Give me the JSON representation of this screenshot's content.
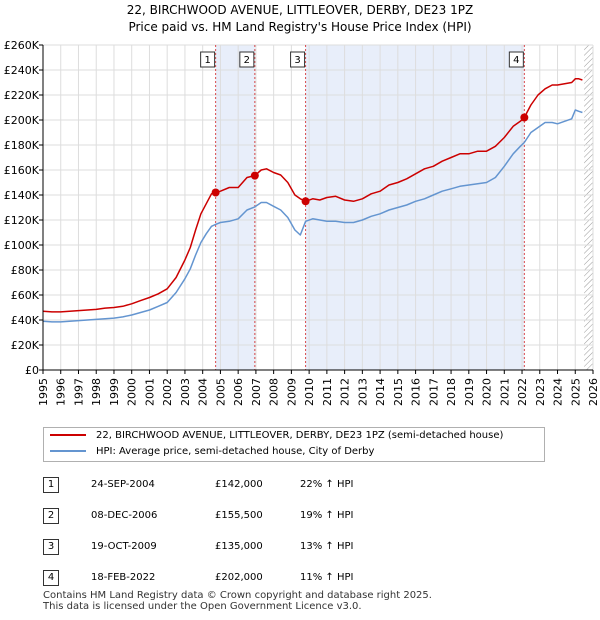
{
  "title_line1": "22, BIRCHWOOD AVENUE, LITTLEOVER, DERBY, DE23 1PZ",
  "title_line2": "Price paid vs. HM Land Registry's House Price Index (HPI)",
  "colors": {
    "red": "#cc0000",
    "blue": "#6495d0",
    "shade": "#e8eefa",
    "grid": "#dddddd",
    "axis": "#000000"
  },
  "chart_data": {
    "type": "line",
    "xlim": [
      1995,
      2026
    ],
    "ylim": [
      0,
      260000
    ],
    "yticks": [
      0,
      20000,
      40000,
      60000,
      80000,
      100000,
      120000,
      140000,
      160000,
      180000,
      200000,
      220000,
      240000,
      260000
    ],
    "ytick_labels": [
      "£0",
      "£20K",
      "£40K",
      "£60K",
      "£80K",
      "£100K",
      "£120K",
      "£140K",
      "£160K",
      "£180K",
      "£200K",
      "£220K",
      "£240K",
      "£260K"
    ],
    "xticks": [
      1995,
      1996,
      1997,
      1998,
      1999,
      2000,
      2001,
      2002,
      2003,
      2004,
      2005,
      2006,
      2007,
      2008,
      2009,
      2010,
      2011,
      2012,
      2013,
      2014,
      2015,
      2016,
      2017,
      2018,
      2019,
      2020,
      2021,
      2022,
      2023,
      2024,
      2025,
      2026
    ],
    "xtick_labels": [
      "1995",
      "1996",
      "1997",
      "1998",
      "1999",
      "2000",
      "2001",
      "2002",
      "2003",
      "2004",
      "2005",
      "2006",
      "2007",
      "2008",
      "2009",
      "2010",
      "2011",
      "2012",
      "2013",
      "2014",
      "2015",
      "2016",
      "2017",
      "2018",
      "2019",
      "2020",
      "2021",
      "2022",
      "2023",
      "2024",
      "2025",
      "2026"
    ],
    "shaded_ranges": [
      [
        2004.73,
        2006.94
      ],
      [
        2009.8,
        2022.13
      ]
    ],
    "hatch_from": 2025.5,
    "series": [
      {
        "name": "22, BIRCHWOOD AVENUE, LITTLEOVER, DERBY, DE23 1PZ (semi-detached house)",
        "color": "red",
        "x": [
          1995.0,
          1995.5,
          1996.0,
          1996.5,
          1997.0,
          1997.5,
          1998.0,
          1998.5,
          1999.0,
          1999.5,
          2000.0,
          2000.5,
          2001.0,
          2001.5,
          2002.0,
          2002.5,
          2003.0,
          2003.3,
          2003.6,
          2003.9,
          2004.2,
          2004.5,
          2004.73,
          2005.0,
          2005.5,
          2006.0,
          2006.5,
          2006.94,
          2007.3,
          2007.6,
          2008.0,
          2008.4,
          2008.8,
          2009.2,
          2009.5,
          2009.8,
          2010.2,
          2010.6,
          2011.0,
          2011.5,
          2012.0,
          2012.5,
          2013.0,
          2013.5,
          2014.0,
          2014.5,
          2015.0,
          2015.5,
          2016.0,
          2016.5,
          2017.0,
          2017.5,
          2018.0,
          2018.5,
          2019.0,
          2019.5,
          2020.0,
          2020.5,
          2021.0,
          2021.5,
          2021.9,
          2022.13,
          2022.5,
          2022.9,
          2023.3,
          2023.7,
          2024.0,
          2024.4,
          2024.8,
          2025.0,
          2025.2,
          2025.4
        ],
        "y": [
          47000,
          46500,
          46500,
          47000,
          47500,
          48000,
          48500,
          49500,
          50000,
          51000,
          53000,
          55500,
          58000,
          61000,
          65000,
          74000,
          88000,
          98000,
          112000,
          125000,
          133000,
          141000,
          142000,
          143000,
          146000,
          146000,
          154000,
          155500,
          160000,
          161000,
          158000,
          156000,
          150000,
          140000,
          137000,
          135000,
          137000,
          136000,
          138000,
          139000,
          136000,
          135000,
          137000,
          141000,
          143000,
          148000,
          150000,
          153000,
          157000,
          161000,
          163000,
          167000,
          170000,
          173000,
          173000,
          175000,
          175000,
          179000,
          186000,
          195000,
          199000,
          202000,
          212000,
          220000,
          225000,
          228000,
          228000,
          229000,
          230000,
          233000,
          233000,
          232000
        ]
      },
      {
        "name": "HPI: Average price, semi-detached house, City of Derby",
        "color": "blue",
        "x": [
          1995.0,
          1995.5,
          1996.0,
          1996.5,
          1997.0,
          1997.5,
          1998.0,
          1998.5,
          1999.0,
          1999.5,
          2000.0,
          2000.5,
          2001.0,
          2001.5,
          2002.0,
          2002.5,
          2003.0,
          2003.3,
          2003.6,
          2003.9,
          2004.2,
          2004.5,
          2004.73,
          2005.0,
          2005.5,
          2006.0,
          2006.5,
          2006.94,
          2007.3,
          2007.6,
          2008.0,
          2008.4,
          2008.8,
          2009.2,
          2009.5,
          2009.8,
          2010.2,
          2010.6,
          2011.0,
          2011.5,
          2012.0,
          2012.5,
          2013.0,
          2013.5,
          2014.0,
          2014.5,
          2015.0,
          2015.5,
          2016.0,
          2016.5,
          2017.0,
          2017.5,
          2018.0,
          2018.5,
          2019.0,
          2019.5,
          2020.0,
          2020.5,
          2021.0,
          2021.5,
          2021.9,
          2022.13,
          2022.5,
          2022.9,
          2023.3,
          2023.7,
          2024.0,
          2024.4,
          2024.8,
          2025.0,
          2025.2,
          2025.4
        ],
        "y": [
          39000,
          38500,
          38500,
          39000,
          39500,
          40000,
          40500,
          41000,
          41500,
          42500,
          44000,
          46000,
          48000,
          51000,
          54000,
          62000,
          73000,
          81000,
          92000,
          102000,
          109000,
          115000,
          116500,
          118000,
          119000,
          121000,
          128000,
          130500,
          134000,
          134000,
          131000,
          128000,
          122000,
          112000,
          108000,
          119000,
          121000,
          120000,
          119000,
          119000,
          118000,
          118000,
          120000,
          123000,
          125000,
          128000,
          130000,
          132000,
          135000,
          137000,
          140000,
          143000,
          145000,
          147000,
          148000,
          149000,
          150000,
          154000,
          163000,
          173000,
          179000,
          182000,
          190000,
          194000,
          198000,
          198000,
          197000,
          199000,
          201000,
          208000,
          207000,
          206000
        ]
      }
    ],
    "markers": [
      {
        "label": "1",
        "x": 2004.73,
        "y": 142000
      },
      {
        "label": "2",
        "x": 2006.94,
        "y": 155500
      },
      {
        "label": "3",
        "x": 2009.8,
        "y": 135000
      },
      {
        "label": "4",
        "x": 2022.13,
        "y": 202000
      }
    ]
  },
  "legend": {
    "property_label": "22, BIRCHWOOD AVENUE, LITTLEOVER, DERBY, DE23 1PZ (semi-detached house)",
    "hpi_label": "HPI: Average price, semi-detached house, City of Derby"
  },
  "sales": [
    {
      "num": "1",
      "date": "24-SEP-2004",
      "price": "£142,000",
      "hpi": "22% ↑ HPI"
    },
    {
      "num": "2",
      "date": "08-DEC-2006",
      "price": "£155,500",
      "hpi": "19% ↑ HPI"
    },
    {
      "num": "3",
      "date": "19-OCT-2009",
      "price": "£135,000",
      "hpi": "13% ↑ HPI"
    },
    {
      "num": "4",
      "date": "18-FEB-2022",
      "price": "£202,000",
      "hpi": "11% ↑ HPI"
    }
  ],
  "footer_line1": "Contains HM Land Registry data © Crown copyright and database right 2025.",
  "footer_line2": "This data is licensed under the Open Government Licence v3.0."
}
